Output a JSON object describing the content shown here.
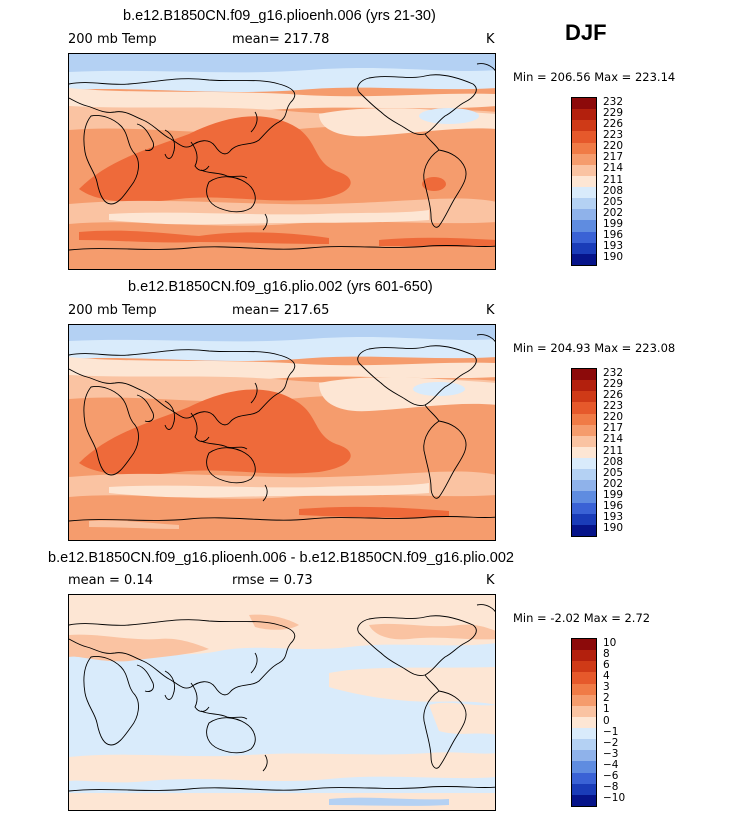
{
  "season": "DJF",
  "panels": [
    {
      "title": "b.e12.B1850CN.f09_g16.plioenh.006 (yrs 21-30)",
      "left_label": "200 mb Temp",
      "center_label": "mean=  217.78",
      "right_label": "K",
      "minmax": "Min = 206.56 Max = 223.14",
      "colorbar_labels": [
        "232",
        "229",
        "226",
        "223",
        "220",
        "217",
        "214",
        "211",
        "208",
        "205",
        "202",
        "199",
        "196",
        "193",
        "190"
      ],
      "colorbar_colors": [
        "#8c0a0a",
        "#b3200d",
        "#cf3a17",
        "#e6592b",
        "#f07b46",
        "#f59c6d",
        "#fac3a2",
        "#fde6d4",
        "#d9ebfb",
        "#b4d1f3",
        "#8fb2ea",
        "#5f8ce0",
        "#3a62d5",
        "#1a3cb8",
        "#06148a"
      ]
    },
    {
      "title": "b.e12.B1850CN.f09_g16.plio.002 (yrs 601-650)",
      "left_label": "200 mb Temp",
      "center_label": "mean=  217.65",
      "right_label": "K",
      "minmax": "Min = 204.93 Max = 223.08",
      "colorbar_labels": [
        "232",
        "229",
        "226",
        "223",
        "220",
        "217",
        "214",
        "211",
        "208",
        "205",
        "202",
        "199",
        "196",
        "193",
        "190"
      ],
      "colorbar_colors": [
        "#8c0a0a",
        "#b3200d",
        "#cf3a17",
        "#e6592b",
        "#f07b46",
        "#f59c6d",
        "#fac3a2",
        "#fde6d4",
        "#d9ebfb",
        "#b4d1f3",
        "#8fb2ea",
        "#5f8ce0",
        "#3a62d5",
        "#1a3cb8",
        "#06148a"
      ]
    },
    {
      "title": "b.e12.B1850CN.f09_g16.plioenh.006 - b.e12.B1850CN.f09_g16.plio.002",
      "left_label": "mean =    0.14",
      "center_label": "rmse =    0.73",
      "right_label": "K",
      "minmax": "Min =   -2.02 Max =    2.72",
      "colorbar_labels": [
        "10",
        "8",
        "6",
        "4",
        "3",
        "2",
        "1",
        "0",
        "−1",
        "−2",
        "−3",
        "−4",
        "−6",
        "−8",
        "−10"
      ],
      "colorbar_colors": [
        "#8c0a0a",
        "#b3200d",
        "#cf3a17",
        "#e6592b",
        "#f07b46",
        "#f59c6d",
        "#fac3a2",
        "#fde6d4",
        "#d9ebfb",
        "#b4d1f3",
        "#8fb2ea",
        "#5f8ce0",
        "#3a62d5",
        "#1a3cb8",
        "#06148a"
      ]
    }
  ],
  "colors": {
    "warm_dark": "#ee6a3a",
    "warm_mid": "#f59c6d",
    "warm_light": "#fac3a2",
    "pale": "#fde6d4",
    "cool_light": "#d9ebfb",
    "cool_mid": "#b4d1f3",
    "cool_dark": "#8fb2ea"
  }
}
